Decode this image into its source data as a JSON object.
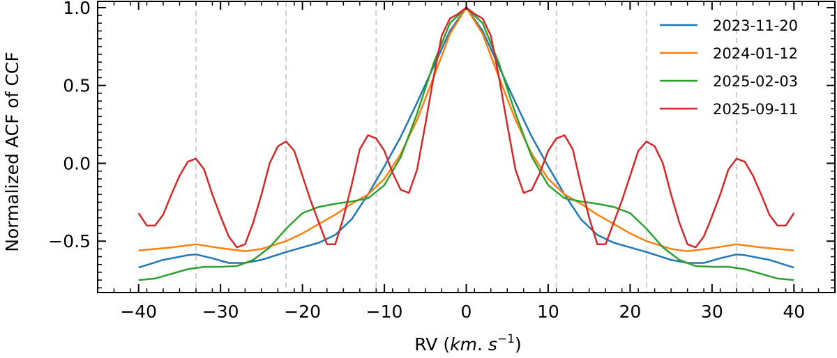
{
  "chart_data": {
    "type": "line",
    "title": "",
    "xlabel_prefix": "RV (",
    "xlabel_unit_km": "km",
    "xlabel_unit_dot": ". ",
    "xlabel_unit_s": "s",
    "xlabel_unit_exp": "−1",
    "xlabel_suffix": ")",
    "ylabel": "Normalized ACF of CCF",
    "xlim": [
      -45,
      45
    ],
    "ylim": [
      -0.83,
      1.04
    ],
    "xticks": [
      -40,
      -30,
      -20,
      -10,
      0,
      10,
      20,
      30,
      40
    ],
    "xtick_labels": [
      "−40",
      "−30",
      "−20",
      "−10",
      "0",
      "10",
      "20",
      "30",
      "40"
    ],
    "yticks": [
      -0.5,
      0.0,
      0.5,
      1.0
    ],
    "ytick_labels": [
      "−0.5",
      "0.0",
      "0.5",
      "1.0"
    ],
    "vlines": [
      -33,
      -22,
      -11,
      11,
      22,
      33
    ],
    "legend_position": "top-right",
    "series": [
      {
        "name": "2023-11-20",
        "color": "#1f77b4",
        "x": [
          -40,
          -37,
          -34,
          -33,
          -31,
          -29,
          -27,
          -25,
          -22,
          -20,
          -18,
          -16,
          -14,
          -12,
          -10,
          -8,
          -6,
          -4,
          -2,
          0,
          2,
          4,
          6,
          8,
          10,
          12,
          14,
          16,
          18,
          20,
          22,
          25,
          27,
          29,
          31,
          33,
          34,
          37,
          40
        ],
        "values": [
          -0.67,
          -0.62,
          -0.59,
          -0.585,
          -0.61,
          -0.64,
          -0.64,
          -0.62,
          -0.57,
          -0.54,
          -0.51,
          -0.46,
          -0.36,
          -0.2,
          -0.02,
          0.17,
          0.39,
          0.62,
          0.85,
          1.0,
          0.85,
          0.62,
          0.39,
          0.17,
          -0.02,
          -0.2,
          -0.36,
          -0.46,
          -0.51,
          -0.54,
          -0.57,
          -0.62,
          -0.64,
          -0.64,
          -0.61,
          -0.585,
          -0.59,
          -0.62,
          -0.67
        ]
      },
      {
        "name": "2024-01-12",
        "color": "#ff7f0e",
        "x": [
          -40,
          -36,
          -33,
          -30,
          -27,
          -25,
          -22,
          -20,
          -18,
          -16,
          -14,
          -12,
          -10,
          -8,
          -6,
          -4,
          -2,
          0,
          2,
          4,
          6,
          8,
          10,
          12,
          14,
          16,
          18,
          20,
          22,
          25,
          27,
          30,
          33,
          36,
          40
        ],
        "values": [
          -0.56,
          -0.54,
          -0.52,
          -0.545,
          -0.565,
          -0.55,
          -0.5,
          -0.45,
          -0.39,
          -0.33,
          -0.26,
          -0.2,
          -0.1,
          0.06,
          0.28,
          0.55,
          0.83,
          1.0,
          0.83,
          0.55,
          0.28,
          0.06,
          -0.1,
          -0.2,
          -0.26,
          -0.33,
          -0.39,
          -0.45,
          -0.5,
          -0.55,
          -0.565,
          -0.545,
          -0.52,
          -0.54,
          -0.56
        ]
      },
      {
        "name": "2025-02-03",
        "color": "#2ca02c",
        "x": [
          -40,
          -38,
          -36,
          -34,
          -32,
          -30,
          -28,
          -26,
          -24,
          -22,
          -20,
          -18,
          -16,
          -14,
          -12,
          -10,
          -8,
          -6,
          -4,
          -2,
          0,
          2,
          4,
          6,
          8,
          10,
          12,
          14,
          16,
          18,
          20,
          22,
          24,
          26,
          28,
          30,
          32,
          34,
          36,
          38,
          40
        ],
        "values": [
          -0.75,
          -0.74,
          -0.71,
          -0.68,
          -0.665,
          -0.665,
          -0.66,
          -0.62,
          -0.54,
          -0.42,
          -0.32,
          -0.28,
          -0.26,
          -0.245,
          -0.225,
          -0.14,
          0.04,
          0.32,
          0.64,
          0.9,
          1.0,
          0.9,
          0.64,
          0.32,
          0.04,
          -0.14,
          -0.225,
          -0.245,
          -0.26,
          -0.28,
          -0.32,
          -0.42,
          -0.54,
          -0.62,
          -0.66,
          -0.665,
          -0.665,
          -0.68,
          -0.71,
          -0.74,
          -0.75
        ]
      },
      {
        "name": "2025-09-11",
        "color": "#d62728",
        "x": [
          -40,
          -39,
          -38,
          -37,
          -36,
          -35,
          -34,
          -33,
          -32,
          -31,
          -30,
          -29,
          -28,
          -27,
          -26,
          -25,
          -24,
          -23,
          -22,
          -21,
          -20,
          -19,
          -18,
          -17,
          -16,
          -15,
          -14,
          -13,
          -12,
          -11,
          -10,
          -9,
          -8,
          -7,
          -6,
          -5,
          -4,
          -3,
          -2,
          -1,
          0,
          1,
          2,
          3,
          4,
          5,
          6,
          7,
          8,
          9,
          10,
          11,
          12,
          13,
          14,
          15,
          16,
          17,
          18,
          19,
          20,
          21,
          22,
          23,
          24,
          25,
          26,
          27,
          28,
          29,
          30,
          31,
          32,
          33,
          34,
          35,
          36,
          37,
          38,
          39,
          40
        ],
        "values": [
          -0.32,
          -0.4,
          -0.4,
          -0.33,
          -0.2,
          -0.08,
          0.01,
          0.03,
          -0.04,
          -0.2,
          -0.34,
          -0.47,
          -0.54,
          -0.52,
          -0.38,
          -0.2,
          0.0,
          0.11,
          0.14,
          0.08,
          -0.08,
          -0.24,
          -0.38,
          -0.52,
          -0.52,
          -0.35,
          -0.14,
          0.09,
          0.18,
          0.16,
          0.08,
          -0.06,
          -0.17,
          -0.19,
          -0.04,
          0.25,
          0.55,
          0.82,
          0.93,
          0.96,
          1.0,
          0.96,
          0.93,
          0.82,
          0.55,
          0.25,
          -0.04,
          -0.19,
          -0.17,
          -0.06,
          0.08,
          0.16,
          0.18,
          0.09,
          -0.14,
          -0.35,
          -0.52,
          -0.52,
          -0.38,
          -0.24,
          -0.08,
          0.08,
          0.14,
          0.11,
          0.0,
          -0.2,
          -0.38,
          -0.52,
          -0.54,
          -0.47,
          -0.34,
          -0.2,
          -0.04,
          0.03,
          0.01,
          -0.08,
          -0.2,
          -0.33,
          -0.4,
          -0.4,
          -0.32
        ]
      }
    ]
  }
}
